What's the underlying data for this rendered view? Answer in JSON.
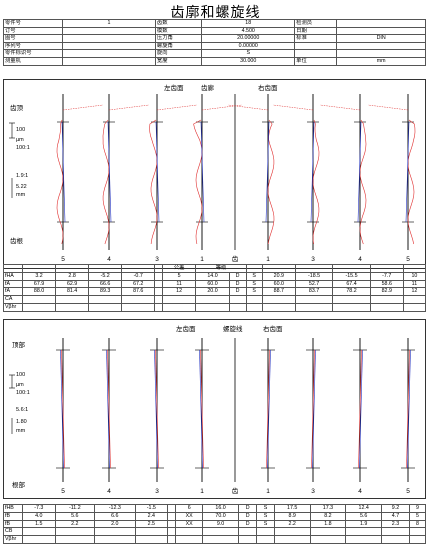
{
  "title": "齿廓和螺旋线",
  "header": [
    [
      "零件号",
      "1",
      "齿数",
      "18",
      "检测员",
      ""
    ],
    [
      "订号",
      "",
      "模数",
      "4.500",
      "日期",
      ""
    ],
    [
      "图号",
      "",
      "压力角",
      "20.00000",
      "标准",
      "DIN"
    ],
    [
      "序列号",
      "",
      "螺旋角",
      "0.00000",
      "",
      ""
    ],
    [
      "零件标识号",
      "",
      "旋向",
      "S",
      "",
      ""
    ],
    [
      "测量机",
      "",
      "宽度",
      "30.000",
      "单位",
      "mm"
    ]
  ],
  "profile": {
    "left_label": "左齿面",
    "mid_label": "齿廊",
    "right_label": "右齿面",
    "top_label": "齿顶",
    "bottom_label": "齿根",
    "scale_100": "100",
    "scale_um": "µm",
    "scale_ratio": "100:1",
    "scale_mag": "1.9:1",
    "scale_mm_val": "5.22",
    "scale_mm": "mm",
    "tooth_numbers": [
      "5",
      "4",
      "3",
      "1",
      "齿",
      "1",
      "3",
      "4",
      "5"
    ]
  },
  "profile_table": {
    "headers": [
      "公差",
      "等级"
    ],
    "rows": [
      {
        "label": "fHA",
        "left": [
          "3.2",
          "2.8",
          "-5.2",
          "-0.7"
        ],
        "tol": "5",
        "cls": "14.0",
        "q": "D",
        "s": "S",
        "right": [
          "20.9",
          "-18.5",
          "-15.5",
          "-7.7"
        ],
        "end": "10"
      },
      {
        "label": "fA",
        "left": [
          "67.9",
          "62.9",
          "66.6",
          "67.2"
        ],
        "tol": "11",
        "cls": "60.0",
        "q": "D",
        "s": "S",
        "right": [
          "60.0",
          "52.7",
          "67.4",
          "58.6"
        ],
        "end": "11"
      },
      {
        "label": "fA",
        "left": [
          "88.0",
          "81.4",
          "89.3",
          "87.6"
        ],
        "tol": "12",
        "cls": "20.0",
        "q": "D",
        "s": "S",
        "right": [
          "88.7",
          "83.7",
          "78.2",
          "82.9"
        ],
        "end": "12"
      },
      {
        "label": "CA",
        "left": [
          "",
          "",
          "",
          ""
        ],
        "tol": "",
        "cls": "",
        "q": "",
        "s": "",
        "right": [
          "",
          "",
          "",
          ""
        ],
        "end": ""
      },
      {
        "label": "Vβhr",
        "left": [
          "",
          "",
          "",
          ""
        ],
        "tol": "",
        "cls": "",
        "q": "",
        "s": "",
        "right": [
          "",
          "",
          "",
          ""
        ],
        "end": ""
      }
    ]
  },
  "helix": {
    "left_label": "左齿面",
    "mid_label": "螺旋线",
    "right_label": "右齿面",
    "top_label": "顶部",
    "bottom_label": "根部",
    "scale_100": "100",
    "scale_um": "µm",
    "scale_ratio": "100:1",
    "scale_mag": "5.6:1",
    "scale_mm_val": "1.80",
    "scale_mm": "mm",
    "tooth_numbers": [
      "5",
      "4",
      "3",
      "1",
      "齿",
      "1",
      "3",
      "4",
      "5"
    ]
  },
  "helix_table": {
    "rows": [
      {
        "label": "fHB",
        "left": [
          "-7.3",
          "-11.2",
          "-12.3",
          "-1.5"
        ],
        "tol": "6",
        "cls": "16.0",
        "q": "D",
        "s": "S",
        "right": [
          "17.5",
          "17.3",
          "12.4",
          "9.2"
        ],
        "end": "9"
      },
      {
        "label": "fB",
        "left": [
          "4.0",
          "5.6",
          "6.6",
          "2.4"
        ],
        "tol": "XX",
        "cls": "70.0",
        "q": "D",
        "s": "S",
        "right": [
          "8.9",
          "8.2",
          "5.6",
          "4.7"
        ],
        "end": "5"
      },
      {
        "label": "fB",
        "left": [
          "1.5",
          "2.2",
          "2.0",
          "2.5"
        ],
        "tol": "XX",
        "cls": "9.0",
        "q": "D",
        "s": "S",
        "right": [
          "2.2",
          "1.8",
          "1.9",
          "2.3"
        ],
        "end": "8"
      },
      {
        "label": "CB",
        "left": [
          "",
          "",
          "",
          ""
        ],
        "tol": "",
        "cls": "",
        "q": "",
        "s": "",
        "right": [
          "",
          "",
          "",
          ""
        ],
        "end": ""
      },
      {
        "label": "Vβhr",
        "left": [
          "",
          "",
          "",
          ""
        ],
        "tol": "",
        "cls": "",
        "q": "",
        "s": "",
        "right": [
          "",
          "",
          "",
          ""
        ],
        "end": ""
      }
    ]
  },
  "colors": {
    "trace_red": "#e03030",
    "trace_blue": "#2030c0",
    "line": "#000000"
  }
}
